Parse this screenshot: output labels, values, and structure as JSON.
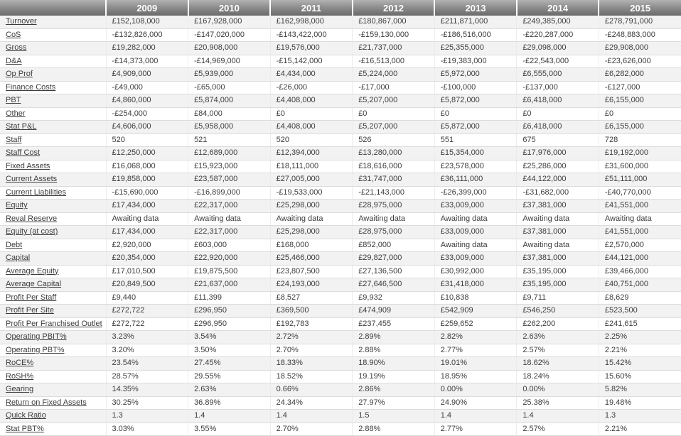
{
  "colors": {
    "header_gradient_top": "#b2b2b2",
    "header_gradient_bottom": "#6a6a6a",
    "header_text": "#ffffff",
    "row_stripe": "#f2f2f2",
    "row_border": "#dcdcdc",
    "body_text": "#3c3c3c"
  },
  "table": {
    "corner_label": "",
    "years": [
      "2009",
      "2010",
      "2011",
      "2012",
      "2013",
      "2014",
      "2015"
    ],
    "rows": [
      {
        "label": "Turnover",
        "values": [
          "£152,108,000",
          "£167,928,000",
          "£162,998,000",
          "£180,867,000",
          "£211,871,000",
          "£249,385,000",
          "£278,791,000"
        ]
      },
      {
        "label": "CoS",
        "values": [
          "-£132,826,000",
          "-£147,020,000",
          "-£143,422,000",
          "-£159,130,000",
          "-£186,516,000",
          "-£220,287,000",
          "-£248,883,000"
        ]
      },
      {
        "label": "Gross",
        "values": [
          "£19,282,000",
          "£20,908,000",
          "£19,576,000",
          "£21,737,000",
          "£25,355,000",
          "£29,098,000",
          "£29,908,000"
        ]
      },
      {
        "label": "D&A",
        "values": [
          "-£14,373,000",
          "-£14,969,000",
          "-£15,142,000",
          "-£16,513,000",
          "-£19,383,000",
          "-£22,543,000",
          "-£23,626,000"
        ]
      },
      {
        "label": "Op Prof",
        "values": [
          "£4,909,000",
          "£5,939,000",
          "£4,434,000",
          "£5,224,000",
          "£5,972,000",
          "£6,555,000",
          "£6,282,000"
        ]
      },
      {
        "label": "Finance Costs",
        "values": [
          "-£49,000",
          "-£65,000",
          "-£26,000",
          "-£17,000",
          "-£100,000",
          "-£137,000",
          "-£127,000"
        ]
      },
      {
        "label": "PBT",
        "values": [
          "£4,860,000",
          "£5,874,000",
          "£4,408,000",
          "£5,207,000",
          "£5,872,000",
          "£6,418,000",
          "£6,155,000"
        ]
      },
      {
        "label": "Other",
        "values": [
          "-£254,000",
          "£84,000",
          "£0",
          "£0",
          "£0",
          "£0",
          "£0"
        ]
      },
      {
        "label": "Stat P&L",
        "values": [
          "£4,606,000",
          "£5,958,000",
          "£4,408,000",
          "£5,207,000",
          "£5,872,000",
          "£6,418,000",
          "£6,155,000"
        ]
      },
      {
        "label": "Staff",
        "values": [
          "520",
          "521",
          "520",
          "526",
          "551",
          "675",
          "728"
        ]
      },
      {
        "label": "Staff Cost",
        "values": [
          "£12,250,000",
          "£12,689,000",
          "£12,394,000",
          "£13,280,000",
          "£15,354,000",
          "£17,976,000",
          "£19,192,000"
        ]
      },
      {
        "label": "Fixed Assets",
        "values": [
          "£16,068,000",
          "£15,923,000",
          "£18,111,000",
          "£18,616,000",
          "£23,578,000",
          "£25,286,000",
          "£31,600,000"
        ]
      },
      {
        "label": "Current Assets",
        "values": [
          "£19,858,000",
          "£23,587,000",
          "£27,005,000",
          "£31,747,000",
          "£36,111,000",
          "£44,122,000",
          "£51,111,000"
        ]
      },
      {
        "label": "Current Liabilities",
        "values": [
          "-£15,690,000",
          "-£16,899,000",
          "-£19,533,000",
          "-£21,143,000",
          "-£26,399,000",
          "-£31,682,000",
          "-£40,770,000"
        ]
      },
      {
        "label": "Equity",
        "values": [
          "£17,434,000",
          "£22,317,000",
          "£25,298,000",
          "£28,975,000",
          "£33,009,000",
          "£37,381,000",
          "£41,551,000"
        ]
      },
      {
        "label": "Reval Reserve",
        "values": [
          "Awaiting data",
          "Awaiting data",
          "Awaiting data",
          "Awaiting data",
          "Awaiting data",
          "Awaiting data",
          "Awaiting data"
        ]
      },
      {
        "label": "Equity (at cost)",
        "values": [
          "£17,434,000",
          "£22,317,000",
          "£25,298,000",
          "£28,975,000",
          "£33,009,000",
          "£37,381,000",
          "£41,551,000"
        ]
      },
      {
        "label": "Debt",
        "values": [
          "£2,920,000",
          "£603,000",
          "£168,000",
          "£852,000",
          "Awaiting data",
          "Awaiting data",
          "£2,570,000"
        ]
      },
      {
        "label": "Capital",
        "values": [
          "£20,354,000",
          "£22,920,000",
          "£25,466,000",
          "£29,827,000",
          "£33,009,000",
          "£37,381,000",
          "£44,121,000"
        ]
      },
      {
        "label": "Average Equity",
        "values": [
          "£17,010,500",
          "£19,875,500",
          "£23,807,500",
          "£27,136,500",
          "£30,992,000",
          "£35,195,000",
          "£39,466,000"
        ]
      },
      {
        "label": "Average Capital",
        "values": [
          "£20,849,500",
          "£21,637,000",
          "£24,193,000",
          "£27,646,500",
          "£31,418,000",
          "£35,195,000",
          "£40,751,000"
        ]
      },
      {
        "label": "Profit Per Staff",
        "values": [
          "£9,440",
          "£11,399",
          "£8,527",
          "£9,932",
          "£10,838",
          "£9,711",
          "£8,629"
        ]
      },
      {
        "label": "Profit Per Site",
        "values": [
          "£272,722",
          "£296,950",
          "£369,500",
          "£474,909",
          "£542,909",
          "£546,250",
          "£523,500"
        ]
      },
      {
        "label": "Profit Per Franchised Outlet",
        "values": [
          "£272,722",
          "£296,950",
          "£192,783",
          "£237,455",
          "£259,652",
          "£262,200",
          "£241,615"
        ]
      },
      {
        "label": "Operating PBIT%",
        "values": [
          "3.23%",
          "3.54%",
          "2.72%",
          "2.89%",
          "2.82%",
          "2.63%",
          "2.25%"
        ]
      },
      {
        "label": "Operating PBT%",
        "values": [
          "3.20%",
          "3.50%",
          "2.70%",
          "2.88%",
          "2.77%",
          "2.57%",
          "2.21%"
        ]
      },
      {
        "label": "RoCE%",
        "values": [
          "23.54%",
          "27.45%",
          "18.33%",
          "18.90%",
          "19.01%",
          "18.62%",
          "15.42%"
        ]
      },
      {
        "label": "RoSH%",
        "values": [
          "28.57%",
          "29.55%",
          "18.52%",
          "19.19%",
          "18.95%",
          "18.24%",
          "15.60%"
        ]
      },
      {
        "label": "Gearing",
        "values": [
          "14.35%",
          "2.63%",
          "0.66%",
          "2.86%",
          "0.00%",
          "0.00%",
          "5.82%"
        ]
      },
      {
        "label": "Return on Fixed Assets",
        "values": [
          "30.25%",
          "36.89%",
          "24.34%",
          "27.97%",
          "24.90%",
          "25.38%",
          "19.48%"
        ]
      },
      {
        "label": "Quick Ratio",
        "values": [
          "1.3",
          "1.4",
          "1.4",
          "1.5",
          "1.4",
          "1.4",
          "1.3"
        ]
      },
      {
        "label": "Stat PBT%",
        "values": [
          "3.03%",
          "3.55%",
          "2.70%",
          "2.88%",
          "2.77%",
          "2.57%",
          "2.21%"
        ]
      }
    ]
  }
}
